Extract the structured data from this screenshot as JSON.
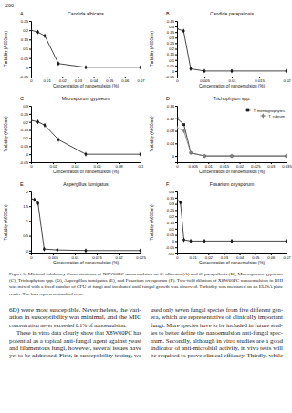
{
  "page_number": "200",
  "chart_data": [
    {
      "type": "line",
      "annotations": [
        "A"
      ],
      "title": "Candida albicans",
      "x_label": "Concentration of nanoemulsion (%)",
      "y_label": "Turbidity (A600nm)",
      "x": [
        0,
        0.0044,
        0.0088,
        0.0175,
        0.035,
        0.07
      ],
      "series": [
        {
          "color": "#1a1a1a",
          "marker": "diamond",
          "values": [
            0.2,
            0.19,
            0.17,
            0.02,
            0,
            0
          ]
        }
      ],
      "xlim": [
        0,
        0.07
      ],
      "ylim": [
        -0.05,
        0.25
      ],
      "xticks": [
        0,
        0.01,
        0.02,
        0.03,
        0.04,
        0.05,
        0.06,
        0.07
      ],
      "yticks": [
        -0.05,
        0,
        0.05,
        0.1,
        0.15,
        0.2,
        0.25
      ]
    },
    {
      "type": "line",
      "annotations": [
        "B"
      ],
      "title": "Candida parapsilosis",
      "x_label": "Concentration of nanoemulsion (%)",
      "y_label": "Turbidity (A600nm)",
      "x": [
        0,
        0.0012,
        0.0025,
        0.005,
        0.01,
        0.02
      ],
      "series": [
        {
          "color": "#1a1a1a",
          "marker": "diamond",
          "values": [
            0.38,
            0.36,
            0.02,
            0,
            0,
            0
          ]
        }
      ],
      "xlim": [
        0,
        0.02
      ],
      "ylim": [
        -0.05,
        0.45
      ],
      "xticks": [
        0,
        0.005,
        0.01,
        0.015,
        0.02
      ],
      "yticks": [
        -0.05,
        0,
        0.05,
        0.1,
        0.15,
        0.2,
        0.25,
        0.3,
        0.35,
        0.4,
        0.45
      ]
    },
    {
      "type": "line",
      "annotations": [
        "C"
      ],
      "title": "Microsporum gypseum",
      "x_label": "Concentration of nanoemulsion (%)",
      "y_label": "Turbidity (A600nm)",
      "x": [
        0,
        0.0063,
        0.0125,
        0.025,
        0.05,
        0.1
      ],
      "series": [
        {
          "color": "#1a1a1a",
          "marker": "diamond",
          "values": [
            0.21,
            0.2,
            0.18,
            0.09,
            0,
            0
          ]
        }
      ],
      "xlim": [
        0,
        0.1
      ],
      "ylim": [
        -0.05,
        0.3
      ],
      "xticks": [
        0,
        0.02,
        0.04,
        0.06,
        0.08,
        0.1
      ],
      "yticks": [
        -0.05,
        0,
        0.05,
        0.1,
        0.15,
        0.2,
        0.25,
        0.3
      ]
    },
    {
      "type": "line",
      "annotations": [
        "D"
      ],
      "title": "Trichophyton spp.",
      "x_label": "Concentration of nanoemulsion (%)",
      "y_label": "Turbidity (A600nm)",
      "legend": "upper right",
      "x": [
        0,
        0.0022,
        0.0044,
        0.0088,
        0.0175,
        0.035
      ],
      "series": [
        {
          "name": "T. mentagrophytes",
          "color": "#1a1a1a",
          "marker": "square",
          "values": [
            0.12,
            0.1,
            0.01,
            0,
            0,
            0
          ]
        },
        {
          "name": "T. rubrum",
          "color": "#7f7f7f",
          "marker": "diamond",
          "values": [
            0.09,
            0.08,
            0.01,
            0,
            0,
            0
          ]
        }
      ],
      "xlim": [
        0,
        0.035
      ],
      "ylim": [
        -0.02,
        0.16
      ],
      "xticks": [
        0,
        0.005,
        0.01,
        0.015,
        0.02,
        0.025,
        0.03,
        0.035
      ],
      "yticks": [
        0,
        0.04,
        0.08,
        0.12,
        0.16
      ]
    },
    {
      "type": "line",
      "annotations": [
        "E"
      ],
      "title": "Aspergillus fumigatus",
      "x_label": "Concentration of nanoemulsion (%)",
      "y_label": "Turbidity (A600nm)",
      "x": [
        0,
        0.0008,
        0.0016,
        0.003,
        0.006,
        0.0125,
        0.025
      ],
      "series": [
        {
          "color": "#1a1a1a",
          "marker": "diamond",
          "values": [
            1.75,
            1.72,
            1.6,
            0.05,
            0.02,
            0,
            0
          ]
        }
      ],
      "xlim": [
        0,
        0.025
      ],
      "ylim": [
        -0.1,
        2
      ],
      "xticks": [
        0,
        0.005,
        0.01,
        0.015,
        0.02,
        0.025
      ],
      "yticks": [
        0,
        0.5,
        1,
        1.5,
        2
      ]
    },
    {
      "type": "line",
      "annotations": [
        "F"
      ],
      "title": "Fusarium oxysporum",
      "x_label": "Concentration of nanoemulsion (%)",
      "y_label": "Turbidity (A600nm)",
      "x": [
        0,
        0.0022,
        0.0044,
        0.0088,
        0.0175,
        0.035,
        0.07
      ],
      "series": [
        {
          "color": "#1a1a1a",
          "marker": "diamond",
          "values": [
            0.33,
            0.31,
            0.01,
            0,
            0,
            0,
            0
          ]
        }
      ],
      "xlim": [
        0,
        0.07
      ],
      "ylim": [
        -0.1,
        0.4
      ],
      "xticks": [
        0,
        0.01,
        0.02,
        0.03,
        0.04,
        0.05,
        0.06,
        0.07
      ],
      "yticks": [
        -0.1,
        -0.05,
        0,
        0.05,
        0.1,
        0.15,
        0.2,
        0.25,
        0.3,
        0.35,
        0.4
      ]
    }
  ],
  "caption": {
    "lines": [
      "Figure 5: Minimal Inhibitory Concentrations of X8W60PC nanoemulsion on C. albicans (A) and C. parapsilosis (B), Microsporum gypseum",
      "(C), Trichophyton spp. (D), Aspergillus fumigatus (E), and Fusarium oxysporum (F). Two-fold dilution of X8W60PC nanoemulsion in BHI",
      "was mixed with a fixed number of CFU of fungi and incubated until fungal growth was observed. Turbidity was measured on an ELISA plate",
      "reader. The bars represent standard error."
    ]
  },
  "columns": [
    {
      "paragraphs": [
        [
          "6D) were most susceptible. Nevertheless, the vari-",
          "ation in susceptibility was minimal, and the MIC",
          "concentration never exceeded 0.1% of nanoemulsion."
        ],
        [
          "These in vitro data clearly show that X8W60PC has",
          "potential as a topical anti-fungal agent against yeast",
          "and filamentous fungi, however, several issues have",
          "yet to be addressed. First, in susceptibility testing, we"
        ]
      ]
    },
    {
      "paragraphs": [
        [
          "used only seven fungal species from five different gen-",
          "era, which are representative of clinically important",
          "fungi. More species have to be included in future stud-",
          "ies to better define the nanoemulsion anti-fungal spec-",
          "trum. Secondly, although in vitro studies are a good",
          "indicator of anti-microbial activity, in vivo tests will",
          "be required to prove clinical efficacy. Thirdly, while"
        ]
      ]
    }
  ]
}
